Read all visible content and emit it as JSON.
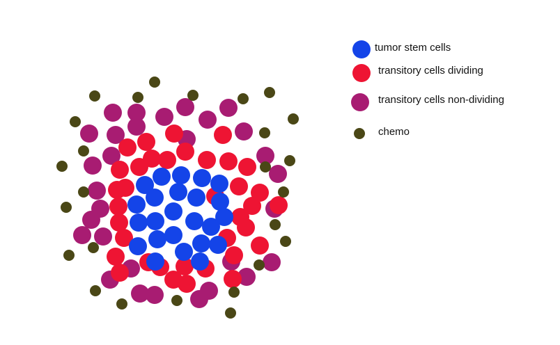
{
  "colors": {
    "tumor_stem": "#1444e8",
    "dividing": "#ee1433",
    "non_dividing": "#a81c72",
    "chemo": "#4a4716",
    "background": "#ffffff"
  },
  "legend": [
    {
      "key": "tumor_stem",
      "label": "tumor stem cells"
    },
    {
      "key": "dividing",
      "label": "transitory cells dividing"
    },
    {
      "key": "non_dividing",
      "label": "transitory cells non-dividing"
    },
    {
      "key": "chemo",
      "label": "chemo"
    }
  ]
}
